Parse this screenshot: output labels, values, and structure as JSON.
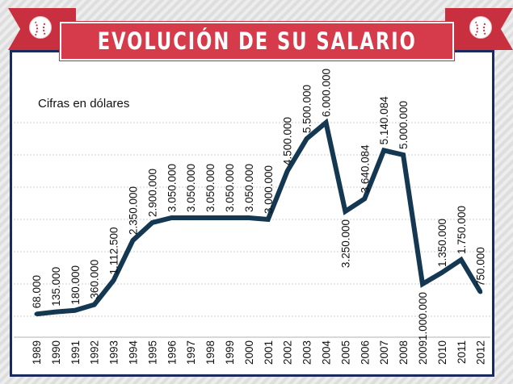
{
  "chart_data": {
    "type": "line",
    "title": "EVOLUCIÓN DE SU SALARIO",
    "subtitle": "Cifras en dólares",
    "xlabel": "",
    "ylabel": "",
    "ylim": [
      0,
      6000000
    ],
    "grid": true,
    "line_color": "#143752",
    "categories": [
      "1989",
      "1990",
      "1991",
      "1992",
      "1993",
      "1994",
      "1995",
      "1996",
      "1997",
      "1998",
      "1999",
      "2000",
      "2001",
      "2002",
      "2003",
      "2004",
      "2005",
      "2006",
      "2007",
      "2008",
      "2009",
      "2010",
      "2011",
      "2012"
    ],
    "values": [
      68000,
      135000,
      180000,
      360000,
      1112500,
      2350000,
      2900000,
      3050000,
      3050000,
      3050000,
      3050000,
      3050000,
      3000000,
      4500000,
      5500000,
      6000000,
      3250000,
      3640084,
      5140084,
      5000000,
      1000000,
      1350000,
      1750000,
      750000
    ],
    "data_labels": [
      "68.000",
      "135.000",
      "180.000",
      "360.000",
      "1.112.500",
      "2.350.000",
      "2.900.000",
      "3.050.000",
      "3.050.000",
      "3.050.000",
      "3.050.000",
      "3.050.000",
      "3.000.000",
      "4.500.000",
      "5.500.000",
      "6.000.000",
      "3.250.000",
      "3.640.084",
      "5.140.084",
      "5.000.000",
      "1.000.000",
      "1.350.000",
      "1.750.000",
      "750.000"
    ],
    "label_below": [
      false,
      false,
      false,
      false,
      false,
      false,
      false,
      false,
      false,
      false,
      false,
      false,
      false,
      false,
      false,
      false,
      true,
      false,
      false,
      false,
      true,
      false,
      false,
      false
    ]
  }
}
